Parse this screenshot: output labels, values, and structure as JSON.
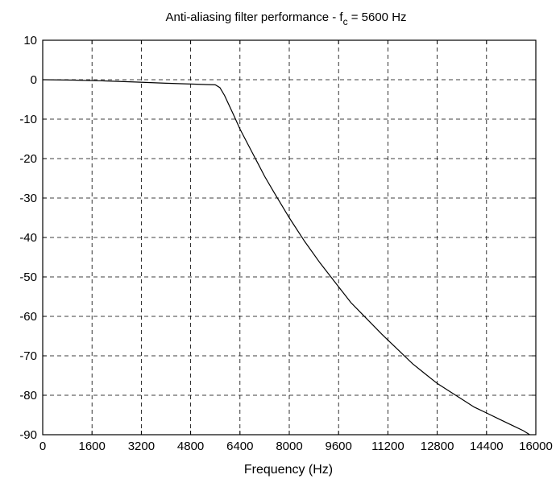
{
  "chart_data": {
    "type": "line",
    "title": {
      "prefix": "Anti-aliasing filter performance - ",
      "symbol": "f",
      "subscript": "c",
      "suffix": " = 5600 Hz"
    },
    "xlabel": "Frequency (Hz)",
    "ylabel": "",
    "xlim": [
      0,
      16000
    ],
    "ylim": [
      -90,
      10
    ],
    "xticks": [
      0,
      1600,
      3200,
      4800,
      6400,
      8000,
      9600,
      11200,
      12800,
      14400,
      16000
    ],
    "yticks": [
      10,
      0,
      -10,
      -20,
      -30,
      -40,
      -50,
      -60,
      -70,
      -80,
      -90
    ],
    "grid": true,
    "legend": "none",
    "colors": {
      "line": "#000000",
      "grid": "#000000",
      "frame": "#000000"
    },
    "series": [
      {
        "x": [
          0,
          1000,
          2000,
          3000,
          4000,
          4800,
          5200,
          5600,
          5750,
          5900,
          6050,
          6200,
          6400,
          6600,
          6800,
          7000,
          7200,
          7500,
          8000,
          8500,
          9000,
          9600,
          10000,
          10500,
          11000,
          11200,
          11600,
          12000,
          12400,
          12800,
          13200,
          13600,
          14000,
          14400,
          14800,
          15200,
          15600,
          15800
        ],
        "y": [
          0,
          -0.1,
          -0.3,
          -0.6,
          -0.9,
          -1.1,
          -1.2,
          -1.3,
          -2.0,
          -4.0,
          -6.5,
          -9.0,
          -12.5,
          -15.5,
          -18.5,
          -21.5,
          -24.5,
          -28.5,
          -35.0,
          -41.0,
          -46.5,
          -52.5,
          -56.5,
          -60.5,
          -64.5,
          -66.0,
          -69.0,
          -72.0,
          -74.5,
          -77.0,
          -79.0,
          -81.0,
          -83.0,
          -84.5,
          -86.0,
          -87.5,
          -89.0,
          -90.0
        ]
      }
    ]
  }
}
